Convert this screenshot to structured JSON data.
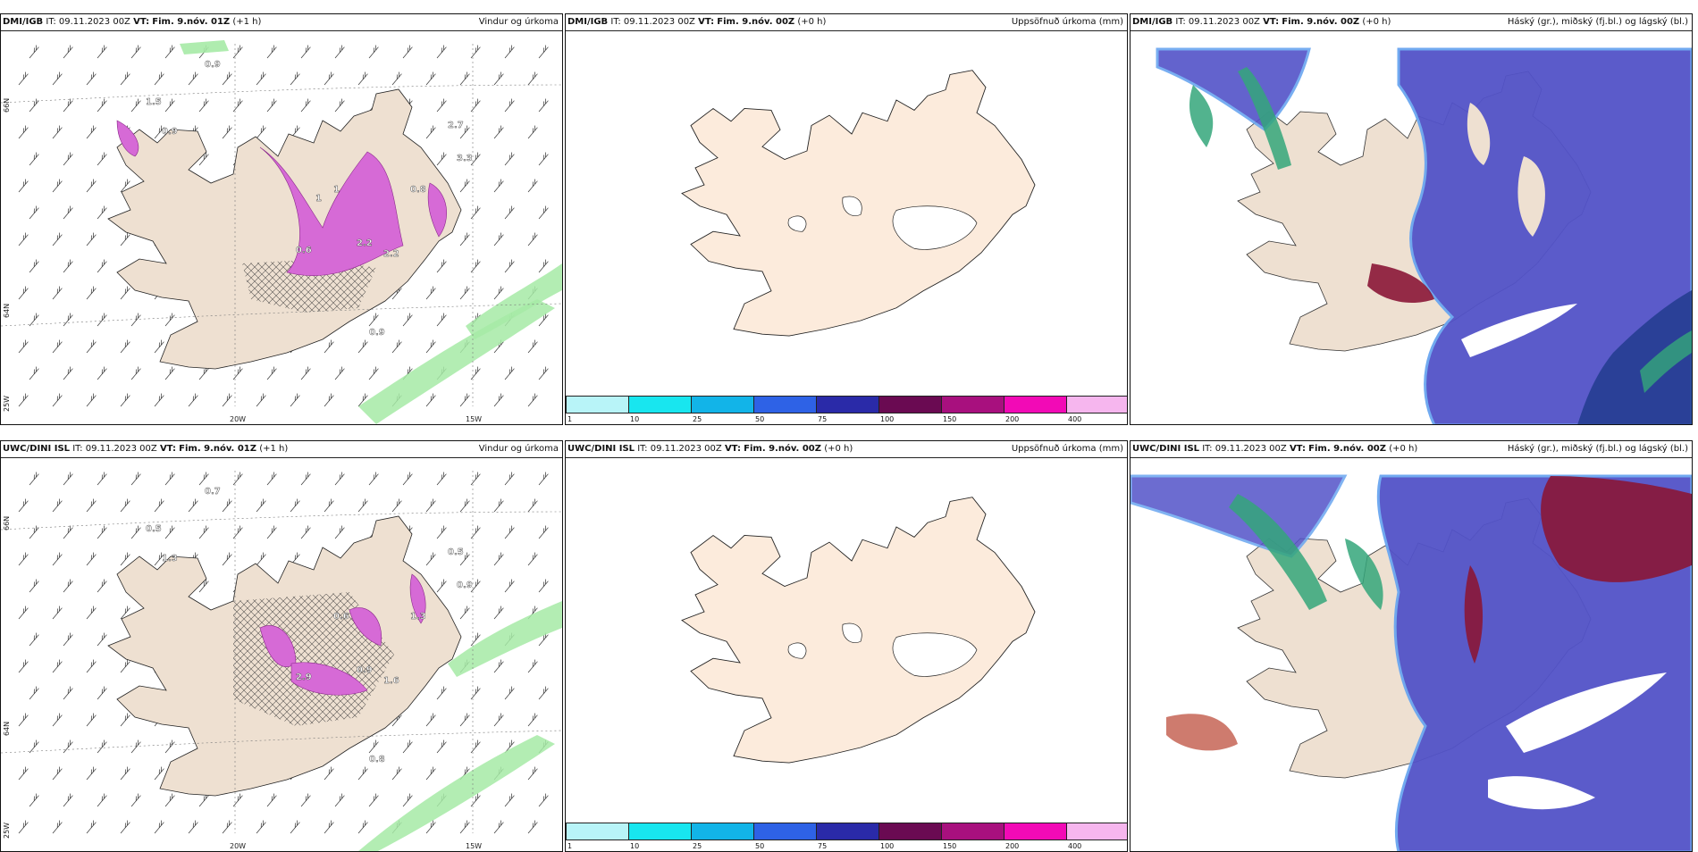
{
  "panels": {
    "dmi_wind": {
      "model": "DMI/IGB",
      "it_label": "IT:",
      "it": "09.11.2023 00Z",
      "vt_label": "VT:",
      "vt": "Fim. 9.nóv. 01Z",
      "lead": "(+1 h)",
      "product": "Vindur og úrkoma"
    },
    "dmi_accum": {
      "model": "DMI/IGB",
      "it_label": "IT:",
      "it": "09.11.2023 00Z",
      "vt_label": "VT:",
      "vt": "Fim. 9.nóv. 00Z",
      "lead": "(+0 h)",
      "product": "Uppsöfnuð úrkoma (mm)"
    },
    "dmi_cloud": {
      "model": "DMI/IGB",
      "it_label": "IT:",
      "it": "09.11.2023 00Z",
      "vt_label": "VT:",
      "vt": "Fim. 9.nóv. 00Z",
      "lead": "(+0 h)",
      "product": "Háský (gr.), miðský (fj.bl.) og lágský (bl.)"
    },
    "uwc_wind": {
      "model": "UWC/DINI ISL",
      "it_label": "IT:",
      "it": "09.11.2023 00Z",
      "vt_label": "VT:",
      "vt": "Fim. 9.nóv. 01Z",
      "lead": "(+1 h)",
      "product": "Vindur og úrkoma"
    },
    "uwc_accum": {
      "model": "UWC/DINI ISL",
      "it_label": "IT:",
      "it": "09.11.2023 00Z",
      "vt_label": "VT:",
      "vt": "Fim. 9.nóv. 00Z",
      "lead": "(+0 h)",
      "product": "Uppsöfnuð úrkoma (mm)"
    },
    "uwc_cloud": {
      "model": "UWC/DINI ISL",
      "it_label": "IT:",
      "it": "09.11.2023 00Z",
      "vt_label": "VT:",
      "vt": "Fim. 9.nóv. 00Z",
      "lead": "(+0 h)",
      "product": "Háský (gr.), miðský (fj.bl.) og lágský (bl.)"
    }
  },
  "axis_labels": {
    "lon_20": "20W",
    "lon_15": "15W",
    "lon_25": "25W",
    "lat_66": "66N",
    "lat_64": "64N"
  },
  "precip_values_dmi": [
    "0.9",
    "1.5",
    "0.9",
    "2.2",
    "2.2",
    "1",
    "0.8",
    "3.3",
    "2.7",
    "0.9",
    "0.6",
    "1"
  ],
  "precip_values_uwc": [
    "0.7",
    "0.5",
    "1.3",
    "0.9",
    "1.6",
    "0.6",
    "1.3",
    "0.9",
    "0.5",
    "0.8",
    "2.9"
  ],
  "colorbar": {
    "ticks": [
      "1",
      "10",
      "25",
      "50",
      "75",
      "100",
      "150",
      "200",
      "400"
    ],
    "colors": [
      "#b8f4f8",
      "#18e6ef",
      "#12b4e8",
      "#2e62e6",
      "#2a2aa8",
      "#6a0a52",
      "#a8107e",
      "#f20ab6",
      "#f6b6ee"
    ]
  },
  "colors": {
    "land": "#eee0d1",
    "land_light": "#fcebdc",
    "precip": "#d66ad6",
    "green": "#a6eaa6",
    "blue_cloud": "#5353c8",
    "red_cloud": "#8a1636"
  }
}
